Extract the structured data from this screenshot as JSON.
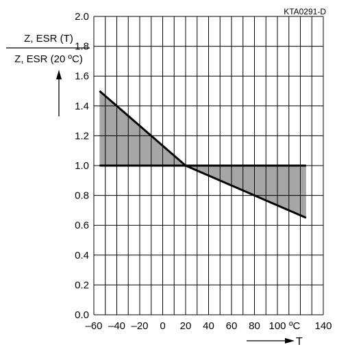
{
  "chart_data": {
    "type": "area",
    "figure_id": "KTA0291-D",
    "ylabel_numerator": "Z, ESR (T)",
    "ylabel_denominator": "Z, ESR (20 ºC)",
    "xlabel": "T",
    "x_unit": "ºC",
    "xlim": [
      -60,
      140
    ],
    "ylim": [
      0,
      2.0
    ],
    "x_ticks": [
      "–60",
      "–40",
      "–20",
      "0",
      "20",
      "40",
      "60",
      "80",
      "100",
      "",
      "140"
    ],
    "x_tick_values": [
      -60,
      -40,
      -20,
      0,
      20,
      40,
      60,
      80,
      100,
      120,
      140
    ],
    "y_ticks": [
      "0.0",
      "0.2",
      "0.4",
      "0.6",
      "0.8",
      "1.0",
      "1.2",
      "1.4",
      "1.6",
      "1.8",
      "2.0"
    ],
    "y_tick_values": [
      0,
      0.2,
      0.4,
      0.6,
      0.8,
      1.0,
      1.2,
      1.4,
      1.6,
      1.8,
      2.0
    ],
    "x_grid_step": 10,
    "y_grid_step": 0.2,
    "grid": true,
    "band_fill": "#a6a6a6",
    "line_color": "#000000",
    "series": [
      {
        "role": "upper-bound",
        "x": [
          -55,
          20,
          125
        ],
        "y": [
          1.5,
          1.0,
          1.0
        ]
      },
      {
        "role": "lower-bound",
        "x": [
          -55,
          20,
          125
        ],
        "y": [
          1.0,
          1.0,
          0.65
        ]
      }
    ]
  }
}
